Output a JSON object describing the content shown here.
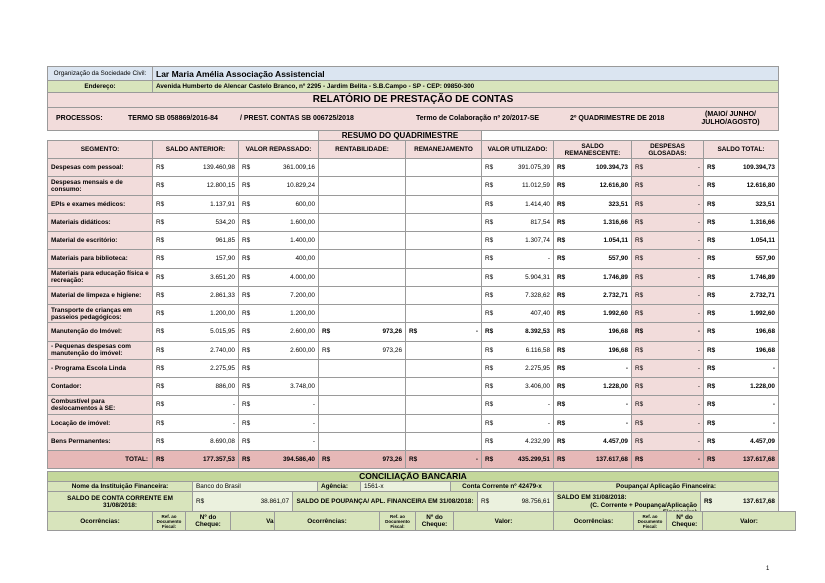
{
  "header": {
    "org_label": "Organização da Sociedade Civil:",
    "org_name": "Lar Maria Amélia Associação Assistencial",
    "address_label": "Endereço:",
    "address": "Avenida Humberto de Alencar Castelo Branco, nº 2295 - Jardim Belita - S.B.Campo - SP - CEP: 09850-300",
    "title": "RELATÓRIO DE PRESTAÇÃO DE CONTAS"
  },
  "processes": {
    "label": "PROCESSOS:",
    "termo": "TERMO SB 058869/2016-84",
    "prestacao": "/ PREST. CONTAS SB 006725/2018",
    "colaboracao": "Termo de Colaboração nº 20/2017-SE",
    "quadrimestre": "2º QUADRIMESTRE DE 2018",
    "months": "(MAIO/ JUNHO/ JULHO/AGOSTO)"
  },
  "summary": {
    "title": "RESUMO DO QUADRIMESTRE",
    "columns": [
      "SEGMENTO:",
      "SALDO ANTERIOR:",
      "VALOR REPASSADO:",
      "RENTABILIDADE:",
      "REMANEJAMENTO",
      "VALOR UTILIZADO:",
      "SALDO REMANESCENTE:",
      "DESPESAS GLOSADAS:",
      "SALDO TOTAL:"
    ],
    "rows": [
      {
        "segment": "Despesas com pessoal:",
        "cells": [
          [
            "R$",
            "139.460,98"
          ],
          [
            "R$",
            "361.009,16"
          ],
          null,
          null,
          [
            "R$",
            "391.075,39"
          ],
          [
            "R$",
            "109.394,73"
          ],
          [
            "R$",
            "-"
          ],
          [
            "R$",
            "109.394,73"
          ]
        ]
      },
      {
        "segment": "Despesas mensais e de consumo:",
        "cells": [
          [
            "R$",
            "12.800,15"
          ],
          [
            "R$",
            "10.829,24"
          ],
          null,
          null,
          [
            "R$",
            "11.012,59"
          ],
          [
            "R$",
            "12.616,80"
          ],
          [
            "R$",
            "-"
          ],
          [
            "R$",
            "12.616,80"
          ]
        ]
      },
      {
        "segment": "EPIs e exames médicos:",
        "cells": [
          [
            "R$",
            "1.137,91"
          ],
          [
            "R$",
            "600,00"
          ],
          null,
          null,
          [
            "R$",
            "1.414,40"
          ],
          [
            "R$",
            "323,51"
          ],
          [
            "R$",
            "-"
          ],
          [
            "R$",
            "323,51"
          ]
        ]
      },
      {
        "segment": "Materiais didáticos:",
        "cells": [
          [
            "R$",
            "534,20"
          ],
          [
            "R$",
            "1.600,00"
          ],
          null,
          null,
          [
            "R$",
            "817,54"
          ],
          [
            "R$",
            "1.316,66"
          ],
          [
            "R$",
            "-"
          ],
          [
            "R$",
            "1.316,66"
          ]
        ]
      },
      {
        "segment": "Material de escritório:",
        "cells": [
          [
            "R$",
            "961,85"
          ],
          [
            "R$",
            "1.400,00"
          ],
          null,
          null,
          [
            "R$",
            "1.307,74"
          ],
          [
            "R$",
            "1.054,11"
          ],
          [
            "R$",
            "-"
          ],
          [
            "R$",
            "1.054,11"
          ]
        ]
      },
      {
        "segment": "Materiais para biblioteca:",
        "cells": [
          [
            "R$",
            "157,90"
          ],
          [
            "R$",
            "400,00"
          ],
          null,
          null,
          [
            "R$",
            "-"
          ],
          [
            "R$",
            "557,90"
          ],
          [
            "R$",
            "-"
          ],
          [
            "R$",
            "557,90"
          ]
        ]
      },
      {
        "segment": "Materiais para educação física e recreação:",
        "cells": [
          [
            "R$",
            "3.651,20"
          ],
          [
            "R$",
            "4.000,00"
          ],
          null,
          null,
          [
            "R$",
            "5.904,31"
          ],
          [
            "R$",
            "1.746,89"
          ],
          [
            "R$",
            "-"
          ],
          [
            "R$",
            "1.746,89"
          ]
        ]
      },
      {
        "segment": "Material de limpeza e higiene:",
        "cells": [
          [
            "R$",
            "2.861,33"
          ],
          [
            "R$",
            "7.200,00"
          ],
          null,
          null,
          [
            "R$",
            "7.328,62"
          ],
          [
            "R$",
            "2.732,71"
          ],
          [
            "R$",
            "-"
          ],
          [
            "R$",
            "2.732,71"
          ]
        ]
      },
      {
        "segment": "Transporte de crianças em passeios pedagógicos:",
        "cells": [
          [
            "R$",
            "1.200,00"
          ],
          [
            "R$",
            "1.200,00"
          ],
          null,
          null,
          [
            "R$",
            "407,40"
          ],
          [
            "R$",
            "1.992,60"
          ],
          [
            "R$",
            "-"
          ],
          [
            "R$",
            "1.992,60"
          ]
        ]
      },
      {
        "segment": "Manutenção do Imóvel:",
        "cells": [
          [
            "R$",
            "5.015,95"
          ],
          [
            "R$",
            "2.600,00"
          ],
          [
            "R$",
            "973,26"
          ],
          [
            "R$",
            "-"
          ],
          [
            "R$",
            "8.392,53"
          ],
          [
            "R$",
            "196,68"
          ],
          [
            "R$",
            "-"
          ],
          [
            "R$",
            "196,68"
          ]
        ]
      },
      {
        "segment": " - Pequenas despesas com manutenção do imóvel:",
        "cells": [
          [
            "R$",
            "2.740,00"
          ],
          [
            "R$",
            "2.600,00"
          ],
          [
            "R$",
            "973,26"
          ],
          null,
          [
            "R$",
            "6.116,58"
          ],
          [
            "R$",
            "196,68"
          ],
          [
            "R$",
            "-"
          ],
          [
            "R$",
            "196,68"
          ]
        ]
      },
      {
        "segment": " - Programa Escola Linda",
        "cells": [
          [
            "R$",
            "2.275,95"
          ],
          [
            "R$"
          ],
          null,
          null,
          [
            "R$",
            "2.275,95"
          ],
          [
            "R$",
            "-"
          ],
          [
            "R$",
            "-"
          ],
          [
            "R$",
            "-"
          ]
        ]
      },
      {
        "segment": "Contador:",
        "cells": [
          [
            "R$",
            "886,00"
          ],
          [
            "R$",
            "3.748,00"
          ],
          null,
          null,
          [
            "R$",
            "3.406,00"
          ],
          [
            "R$",
            "1.228,00"
          ],
          [
            "R$",
            "-"
          ],
          [
            "R$",
            "1.228,00"
          ]
        ]
      },
      {
        "segment": "Combustível para deslocamentos à SE:",
        "cells": [
          [
            "R$",
            "-"
          ],
          [
            "R$",
            "-"
          ],
          null,
          null,
          [
            "R$",
            "-"
          ],
          [
            "R$",
            "-"
          ],
          [
            "R$",
            "-"
          ],
          [
            "R$",
            "-"
          ]
        ]
      },
      {
        "segment": "Locação de imóvel:",
        "cells": [
          [
            "R$",
            "-"
          ],
          [
            "R$",
            "-"
          ],
          null,
          null,
          [
            "R$",
            "-"
          ],
          [
            "R$",
            "-"
          ],
          [
            "R$",
            "-"
          ],
          [
            "R$",
            "-"
          ]
        ]
      },
      {
        "segment": "Bens Permanentes:",
        "cells": [
          [
            "R$",
            "8.690,08"
          ],
          [
            "R$",
            "-"
          ],
          null,
          null,
          [
            "R$",
            "4.232,99"
          ],
          [
            "R$",
            "4.457,09"
          ],
          [
            "R$",
            "-"
          ],
          [
            "R$",
            "4.457,09"
          ]
        ]
      }
    ],
    "total": {
      "segment": "TOTAL:",
      "cells": [
        [
          "R$",
          "177.357,53"
        ],
        [
          "R$",
          "394.586,40"
        ],
        [
          "R$",
          "973,26"
        ],
        [
          "R$",
          "-"
        ],
        [
          "R$",
          "435.299,51"
        ],
        [
          "R$",
          "137.617,68"
        ],
        [
          "R$",
          "-"
        ],
        [
          "R$",
          "137.617,68"
        ]
      ]
    }
  },
  "reconciliation": {
    "title": "CONCILIAÇÃO BANCÁRIA",
    "bank_label": "Nome da Instituição Financeira:",
    "bank": "Banco do Brasil",
    "agency_label": "Agência:",
    "agency": "1561-x",
    "account": "Conta Corrente nº 42479-x",
    "savings_label": "Poupança/ Aplicação Financeira:",
    "checking_balance_label": "SALDO DE CONTA CORRENTE EM 31/08/2018:",
    "checking_balance": [
      "R$",
      "38.861,07"
    ],
    "savings_balance_label": "SALDO DE POUPANÇA/ APL. FINANCEIRA EM 31/08/2018:",
    "savings_balance": [
      "R$",
      "98.756,61"
    ],
    "total_balance_label": "SALDO EM 31/08/2018:",
    "total_balance_note": "(C. Corrente + Poupança/Aplicação Financeira)",
    "total_balance": [
      "R$",
      "137.617,68"
    ],
    "occurrence_columns": [
      "Ocorrências:",
      "Ref. ao Documento Fiscal:",
      "Nº do Cheque:",
      "Valor:"
    ]
  },
  "page_number": "1"
}
